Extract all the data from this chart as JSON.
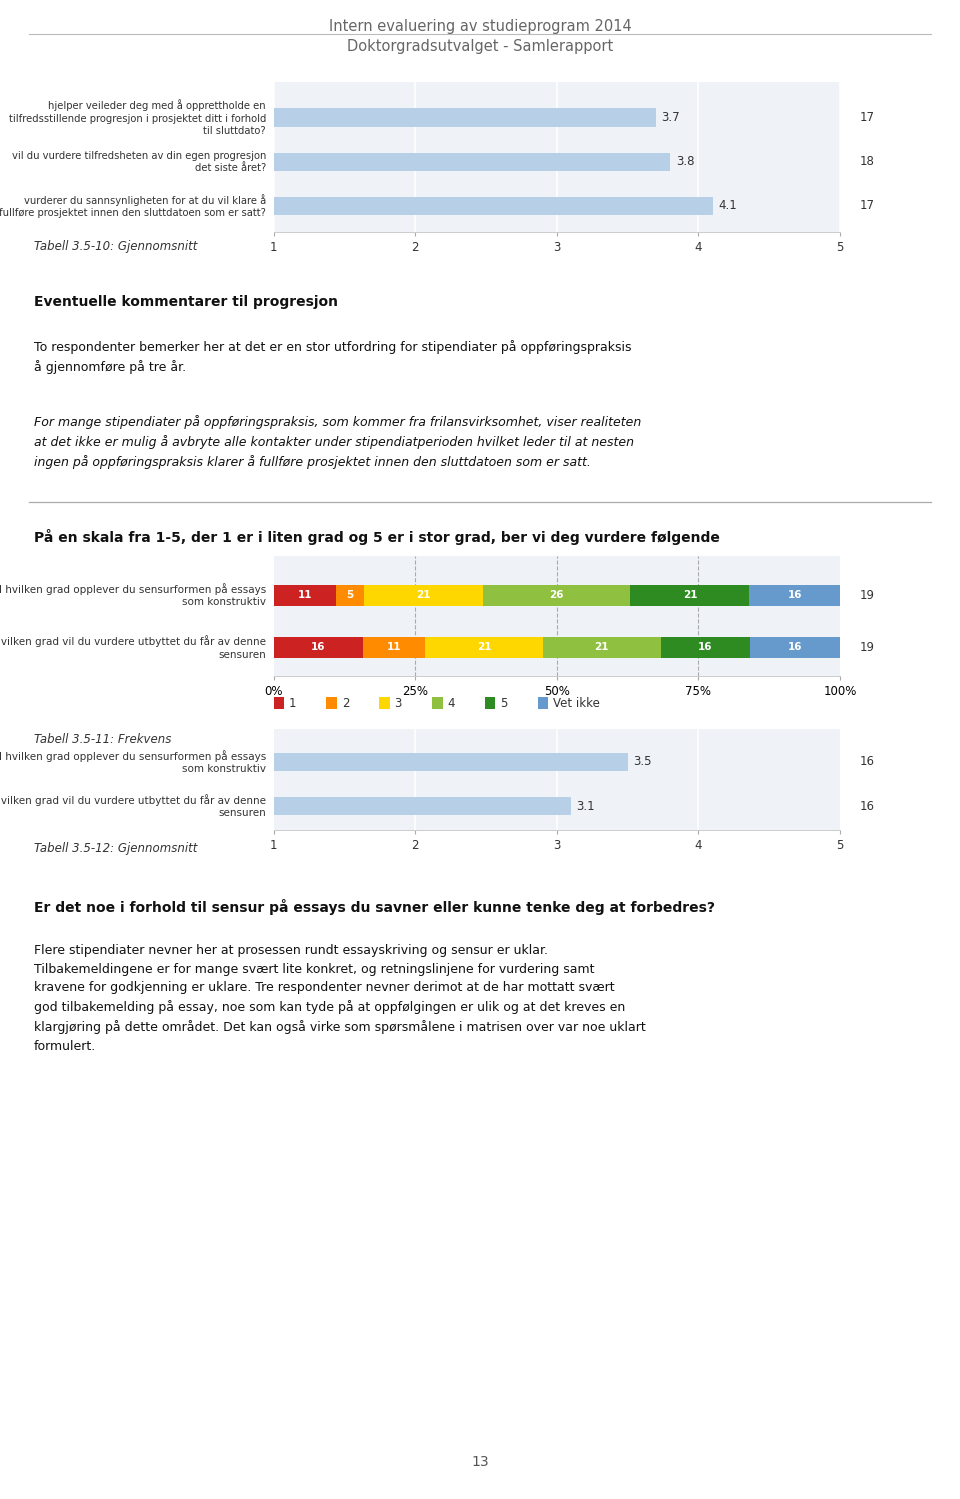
{
  "title1": "Intern evaluering av studieprogram 2014",
  "title2": "Doktorgradsutvalget - Samlerapport",
  "page_number": "13",
  "top_chart": {
    "labels": [
      "hjelper veileder deg med å opprettholde en\ntilfredsstillende progresjon i prosjektet ditt i forhold\ntil sluttdato?",
      "vil du vurdere tilfredsheten av din egen progresjon\ndet siste året?",
      "vurderer du sannsynligheten for at du vil klare å\nfullføre prosjektet innen den sluttdatoen som er satt?"
    ],
    "values": [
      3.7,
      3.8,
      4.1
    ],
    "n_values": [
      17,
      18,
      17
    ],
    "bar_color": "#b8cfe8",
    "xlim": [
      1,
      5
    ],
    "xticks": [
      1,
      2,
      3,
      4,
      5
    ]
  },
  "tabell1": "Tabell 3.5-10: Gjennomsnitt",
  "section1_heading": "Eventuelle kommentarer til progresjon",
  "section1_body": "To respondenter bemerker her at det er en stor utfordring for stipendiater på oppføringspraksis\nå gjennomføre på tre år.",
  "section1_italic": "For mange stipendiater på oppføringspraksis, som kommer fra frilansvirksomhet, viser realiteten\nat det ikke er mulig å avbryte alle kontakter under stipendiatperioden hvilket leder til at nesten\ningen på oppføringspraksis klarer å fullføre prosjektet innen den sluttdatoen som er satt.",
  "section2_heading": "På en skala fra 1-5, der 1 er i liten grad og 5 er i stor grad, ber vi deg vurdere følgende",
  "freq_chart": {
    "labels": [
      "I hvilken grad opplever du sensurformen på essays\nsom konstruktiv",
      "I hvilken grad vil du vurdere utbyttet du får av denne\nsensuren"
    ],
    "data": [
      [
        11,
        5,
        21,
        26,
        21,
        16
      ],
      [
        16,
        11,
        21,
        21,
        16,
        16
      ]
    ],
    "n_values": [
      19,
      19
    ],
    "colors": [
      "#cc2222",
      "#ff8c00",
      "#ffd700",
      "#90c040",
      "#2e8b22",
      "#6699cc"
    ],
    "legend_labels": [
      "1",
      "2",
      "3",
      "4",
      "5",
      "Vet ikke"
    ],
    "xtick_positions": [
      0,
      25,
      50,
      75,
      100
    ],
    "xtick_labels": [
      "0%",
      "25%",
      "50%",
      "75%",
      "100%"
    ]
  },
  "tabell2": "Tabell 3.5-11: Frekvens",
  "mean_chart2": {
    "labels": [
      "I hvilken grad opplever du sensurformen på essays\nsom konstruktiv",
      "I hvilken grad vil du vurdere utbyttet du får av denne\nsensuren"
    ],
    "values": [
      3.5,
      3.1
    ],
    "n_values": [
      16,
      16
    ],
    "bar_color": "#b8cfe8",
    "xlim": [
      1,
      5
    ],
    "xticks": [
      1,
      2,
      3,
      4,
      5
    ]
  },
  "tabell3": "Tabell 3.5-12: Gjennomsnitt",
  "section3_heading": "Er det noe i forhold til sensur på essays du savner eller kunne tenke deg at forbedres?",
  "section3_body": "Flere stipendiater nevner her at prosessen rundt essayskriving og sensur er uklar.\nTilbakemeldingene er for mange svært lite konkret, og retningslinjene for vurdering samt\nkravene for godkjenning er uklare. Tre respondenter nevner derimot at de har mottatt svært\ngod tilbakemelding på essay, noe som kan tyde på at oppfølgingen er ulik og at det kreves en\nklargjøring på dette området. Det kan også virke som spørsmålene i matrisen over var noe uklart\nformulert."
}
